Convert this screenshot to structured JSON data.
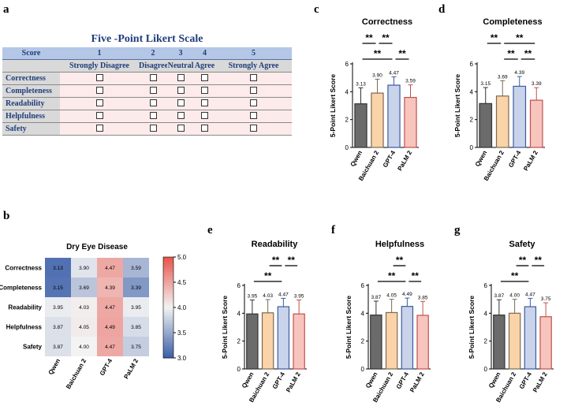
{
  "panel_labels": {
    "a": "a",
    "b": "b",
    "c": "c",
    "d": "d",
    "e": "e",
    "f": "f",
    "g": "g"
  },
  "likert": {
    "title": "Five -Point Likert Scale",
    "header_label": "Score",
    "scores": [
      "1",
      "2",
      "3",
      "4",
      "5"
    ],
    "descriptors": [
      "Strongly Disagree",
      "Disagree",
      "Neutral",
      "Agree",
      "Strongly Agree"
    ],
    "rows": [
      "Correctness",
      "Completeness",
      "Readability",
      "Helpfulness",
      "Safety"
    ]
  },
  "colors": {
    "qwen": "#6b6b6b",
    "baichuan": "#fbd3a8",
    "gpt4": "#c9d3ea",
    "palm": "#f7c5be",
    "palm_edge": "#c0504d",
    "gpt4_edge": "#3b5ba0",
    "heat_low": "#3a5ea8",
    "heat_mid": "#f3f3f3",
    "heat_high": "#e8534b"
  },
  "chart_data": [
    {
      "id": "c",
      "type": "bar",
      "title": "Correctness",
      "ylabel": "5-Point Likert Score",
      "ylim": [
        0,
        6
      ],
      "ticks": [
        "0",
        "2",
        "4",
        "6"
      ],
      "categories": [
        "Qwen",
        "Baichuan 2",
        "GPT-4",
        "PaLM 2"
      ],
      "values": [
        3.13,
        3.9,
        4.47,
        3.59
      ],
      "labels": [
        "3.13",
        "3.90",
        "4.47",
        "3.59"
      ],
      "errors": [
        1.15,
        1.0,
        0.6,
        0.9
      ],
      "sig": [
        {
          "from": 0,
          "to": 2,
          "level": 0,
          "text": "**"
        },
        {
          "from": 2,
          "to": 3,
          "level": 0,
          "text": "**"
        },
        {
          "from": 0,
          "to": 1,
          "level": 1,
          "text": "**"
        },
        {
          "from": 1,
          "to": 2,
          "level": 1,
          "text": "**"
        }
      ]
    },
    {
      "id": "d",
      "type": "bar",
      "title": "Completeness",
      "ylabel": "5-Point Likert Score",
      "ylim": [
        0,
        6
      ],
      "ticks": [
        "0",
        "2",
        "4",
        "6"
      ],
      "categories": [
        "Qwen",
        "Baichuan 2",
        "GPT-4",
        "PaLM 2"
      ],
      "values": [
        3.15,
        3.69,
        4.39,
        3.39
      ],
      "labels": [
        "3.15",
        "3.69",
        "4.39",
        "3.39"
      ],
      "errors": [
        1.15,
        1.1,
        0.7,
        0.9
      ],
      "sig": [
        {
          "from": 1,
          "to": 2,
          "level": 0,
          "text": "**"
        },
        {
          "from": 2,
          "to": 3,
          "level": 0,
          "text": "**"
        },
        {
          "from": 0,
          "to": 1,
          "level": 1,
          "text": "**"
        },
        {
          "from": 1,
          "to": 3,
          "level": 1,
          "text": "**"
        }
      ]
    },
    {
      "id": "e",
      "type": "bar",
      "title": "Readability",
      "ylabel": "5-Point Likert Score",
      "ylim": [
        0,
        6
      ],
      "ticks": [
        "0",
        "2",
        "4",
        "6"
      ],
      "categories": [
        "Qwen",
        "Baichuan 2",
        "GPT-4",
        "PaLM 2"
      ],
      "values": [
        3.95,
        4.03,
        4.47,
        3.95
      ],
      "labels": [
        "3.95",
        "4.03",
        "4.47",
        "3.95"
      ],
      "errors": [
        1.0,
        0.95,
        0.6,
        1.0
      ],
      "sig": [
        {
          "from": 0,
          "to": 2,
          "level": 0,
          "text": "**"
        },
        {
          "from": 1,
          "to": 2,
          "level": 1,
          "text": "**"
        },
        {
          "from": 2,
          "to": 3,
          "level": 1,
          "text": "**"
        }
      ]
    },
    {
      "id": "f",
      "type": "bar",
      "title": "Helpfulness",
      "ylabel": "5-Point Likert Score",
      "ylim": [
        0,
        6
      ],
      "ticks": [
        "0",
        "2",
        "4",
        "6"
      ],
      "categories": [
        "Qwen",
        "Baichuan 2",
        "GPT-4",
        "PaLM 2"
      ],
      "values": [
        3.87,
        4.05,
        4.49,
        3.85
      ],
      "labels": [
        "3.87",
        "4.05",
        "4.49",
        "3.85"
      ],
      "errors": [
        1.0,
        0.95,
        0.6,
        1.0
      ],
      "sig": [
        {
          "from": 0,
          "to": 2,
          "level": 0,
          "text": "**"
        },
        {
          "from": 2,
          "to": 3,
          "level": 0,
          "text": "**"
        },
        {
          "from": 1,
          "to": 2,
          "level": 1,
          "text": "**"
        }
      ]
    },
    {
      "id": "g",
      "type": "bar",
      "title": "Safety",
      "ylabel": "5-Point Likert Score",
      "ylim": [
        0,
        6
      ],
      "ticks": [
        "0",
        "2",
        "4",
        "6"
      ],
      "categories": [
        "Qwen",
        "Baichuan 2",
        "GPT-4",
        "PaLM 2"
      ],
      "values": [
        3.87,
        4.0,
        4.47,
        3.75
      ],
      "labels": [
        "3.87",
        "4.00",
        "4.47",
        "3.75"
      ],
      "errors": [
        1.1,
        1.0,
        0.6,
        1.0
      ],
      "sig": [
        {
          "from": 0,
          "to": 2,
          "level": 0,
          "text": "**"
        },
        {
          "from": 1,
          "to": 2,
          "level": 1,
          "text": "**"
        },
        {
          "from": 2,
          "to": 3,
          "level": 1,
          "text": "**"
        }
      ]
    },
    {
      "id": "b",
      "type": "heatmap",
      "title": "Dry Eye Disease",
      "rows": [
        "Correctness",
        "Completeness",
        "Readability",
        "Helpfulness",
        "Safety"
      ],
      "columns": [
        "Qwen",
        "Baichuan 2",
        "GPT-4",
        "PaLM 2"
      ],
      "values": [
        [
          3.13,
          3.9,
          4.47,
          3.59
        ],
        [
          3.15,
          3.69,
          4.39,
          3.39
        ],
        [
          3.95,
          4.03,
          4.47,
          3.95
        ],
        [
          3.87,
          4.05,
          4.49,
          3.85
        ],
        [
          3.87,
          4.0,
          4.47,
          3.75
        ]
      ],
      "labels": [
        [
          "3.13",
          "3.90",
          "4.47",
          "3.59"
        ],
        [
          "3.15",
          "3.69",
          "4.39",
          "3.39"
        ],
        [
          "3.95",
          "4.03",
          "4.47",
          "3.95"
        ],
        [
          "3.87",
          "4.05",
          "4.49",
          "3.85"
        ],
        [
          "3.87",
          "4.00",
          "4.47",
          "3.75"
        ]
      ],
      "colorbar_range": [
        3.0,
        5.0
      ],
      "colorbar_ticks": [
        "3.0",
        "3.5",
        "4.0",
        "4.5",
        "5.0"
      ]
    }
  ]
}
